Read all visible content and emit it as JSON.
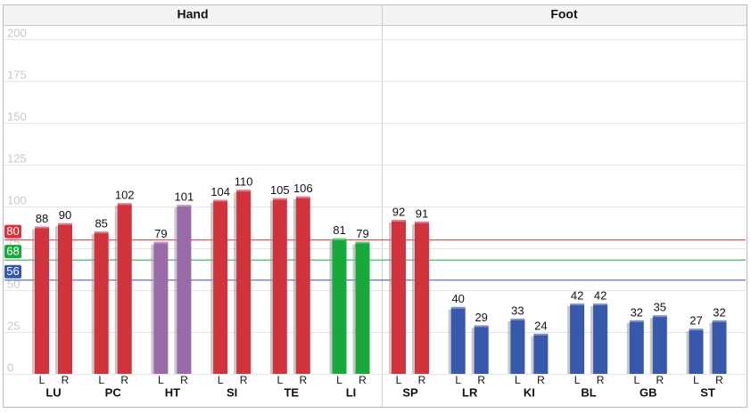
{
  "chart_data": {
    "type": "bar",
    "ylim": [
      0,
      200
    ],
    "yticks": [
      0,
      25,
      50,
      75,
      100,
      125,
      150,
      175,
      200
    ],
    "grid": true,
    "side_labels": [
      "L",
      "R"
    ],
    "reference_lines": [
      {
        "value": 80,
        "color": "#e0313b"
      },
      {
        "value": 68,
        "color": "#16a83a"
      },
      {
        "value": 56,
        "color": "#3556b0"
      }
    ],
    "panels": [
      {
        "title": "Hand",
        "categories": [
          "LU",
          "PC",
          "HT",
          "SI",
          "TE",
          "LI"
        ],
        "left": [
          88,
          85,
          79,
          104,
          105,
          81
        ],
        "right": [
          90,
          102,
          101,
          110,
          106,
          79
        ],
        "colors": [
          "#d1333d",
          "#d1333d",
          "#9a6aa8",
          "#d1333d",
          "#d1333d",
          "#17a93a"
        ]
      },
      {
        "title": "Foot",
        "categories": [
          "SP",
          "LR",
          "KI",
          "BL",
          "GB",
          "ST"
        ],
        "left": [
          92,
          40,
          33,
          42,
          32,
          27
        ],
        "right": [
          91,
          29,
          24,
          42,
          35,
          32
        ],
        "colors": [
          "#d1333d",
          "#3859ab",
          "#3859ab",
          "#3859ab",
          "#3859ab",
          "#3859ab"
        ]
      }
    ]
  }
}
